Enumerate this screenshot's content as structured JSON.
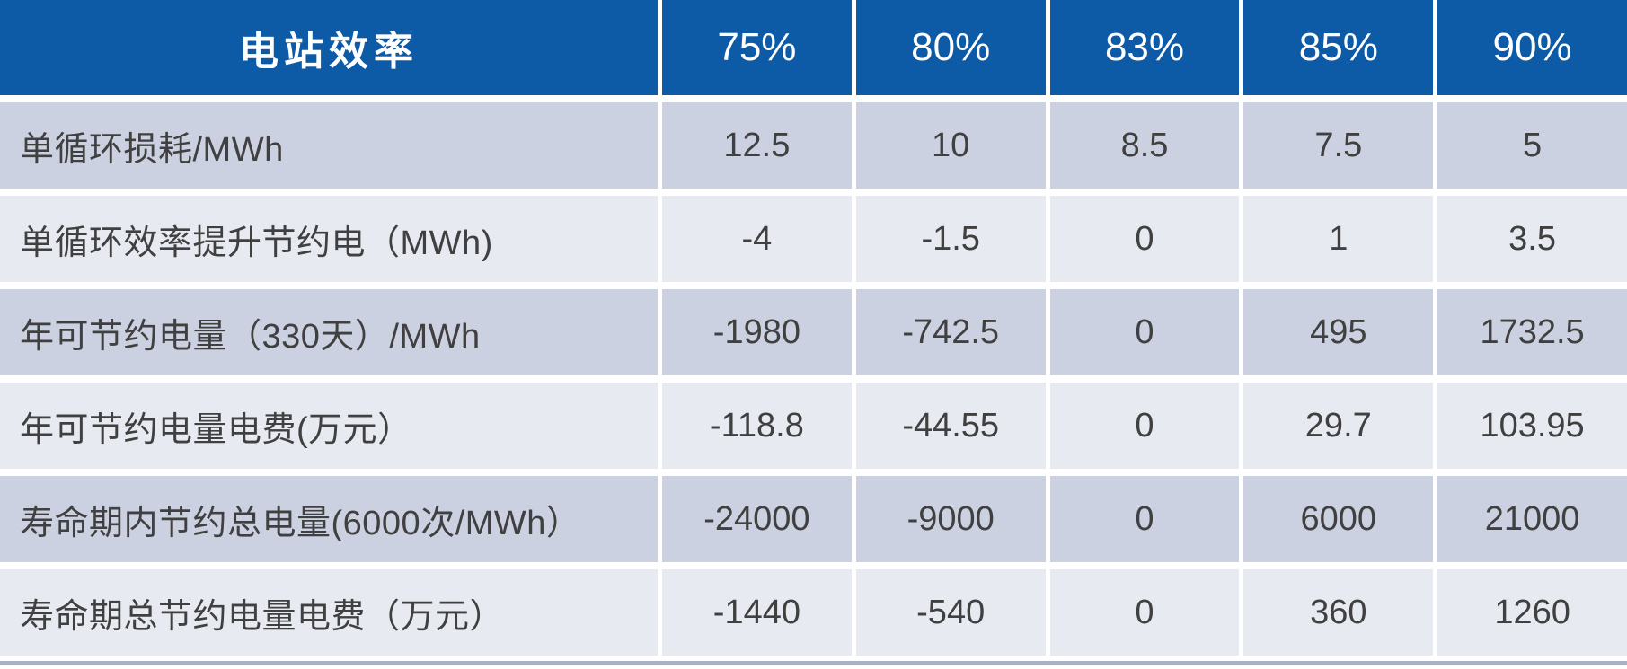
{
  "table": {
    "header": {
      "corner": "电站效率",
      "columns": [
        "75%",
        "80%",
        "83%",
        "85%",
        "90%"
      ]
    },
    "rows": [
      {
        "label": "单循环损耗/MWh",
        "values": [
          "12.5",
          "10",
          "8.5",
          "7.5",
          "5"
        ]
      },
      {
        "label": "单循环效率提升节约电（MWh)",
        "values": [
          "-4",
          "-1.5",
          "0",
          "1",
          "3.5"
        ]
      },
      {
        "label": "年可节约电量（330天）/MWh",
        "values": [
          "-1980",
          "-742.5",
          "0",
          "495",
          "1732.5"
        ]
      },
      {
        "label": "年可节约电量电费(万元）",
        "values": [
          "-118.8",
          "-44.55",
          "0",
          "29.7",
          "103.95"
        ]
      },
      {
        "label": "寿命期内节约总电量(6000次/MWh）",
        "values": [
          "-24000",
          "-9000",
          "0",
          "6000",
          "21000"
        ]
      },
      {
        "label": "寿命期总节约电量电费（万元）",
        "values": [
          "-1440",
          "-540",
          "0",
          "360",
          "1260"
        ]
      }
    ],
    "colors": {
      "header_bg": "#0d5aa6",
      "header_text": "#ffffff",
      "row_dark_bg": "#ccd1e1",
      "row_light_bg": "#e8eaf2",
      "body_text": "#404040",
      "separator": "#ffffff",
      "bottom_rule": "#a9b1c4"
    }
  },
  "chart_data": {
    "type": "table",
    "title": "电站效率",
    "categories": [
      "75%",
      "80%",
      "83%",
      "85%",
      "90%"
    ],
    "series": [
      {
        "name": "单循环损耗/MWh",
        "values": [
          12.5,
          10,
          8.5,
          7.5,
          5
        ]
      },
      {
        "name": "单循环效率提升节约电（MWh)",
        "values": [
          -4,
          -1.5,
          0,
          1,
          3.5
        ]
      },
      {
        "name": "年可节约电量（330天）/MWh",
        "values": [
          -1980,
          -742.5,
          0,
          495,
          1732.5
        ]
      },
      {
        "name": "年可节约电量电费(万元）",
        "values": [
          -118.8,
          -44.55,
          0,
          29.7,
          103.95
        ]
      },
      {
        "name": "寿命期内节约总电量(6000次/MWh）",
        "values": [
          -24000,
          -9000,
          0,
          6000,
          21000
        ]
      },
      {
        "name": "寿命期总节约电量电费（万元）",
        "values": [
          -1440,
          -540,
          0,
          360,
          1260
        ]
      }
    ],
    "layout": {
      "header_row": true,
      "first_column_is_label": true,
      "grid": "white-separators",
      "legend": "none"
    }
  }
}
